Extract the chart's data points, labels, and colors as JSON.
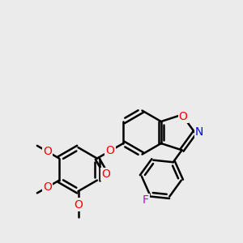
{
  "background_color": "#ebebeb",
  "bond_color": "#000000",
  "bond_width": 1.8,
  "atom_colors": {
    "O": "#ff0000",
    "N": "#0000ff",
    "F": "#cc00cc",
    "C": "#000000"
  },
  "font_size": 10,
  "xlim": [
    0,
    10
  ],
  "ylim": [
    0,
    10
  ]
}
